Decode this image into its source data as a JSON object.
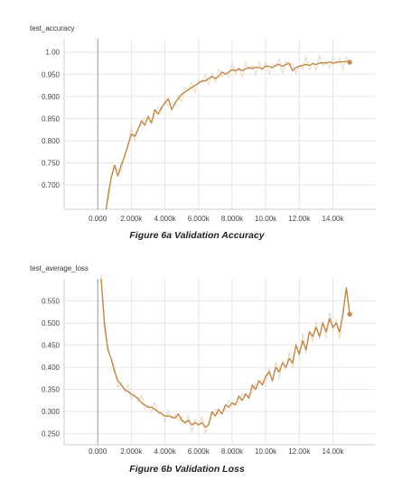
{
  "colors": {
    "line": "#c0894a",
    "raw": "#ecd9c3",
    "grid": "#e6e6e6",
    "axis": "#cccccc",
    "zero": "#999999"
  },
  "chart_data": [
    {
      "type": "line",
      "title": "test_accuracy",
      "caption": "Figure 6a Validation Accuracy",
      "xlim": [
        -2000,
        16500
      ],
      "ylim": [
        0.645,
        1.03
      ],
      "xticks": [
        0,
        2000,
        4000,
        6000,
        8000,
        10000,
        12000,
        14000
      ],
      "xtick_labels": [
        "0.000",
        "2.000k",
        "4.000k",
        "6.000k",
        "8.000k",
        "10.00k",
        "12.00k",
        "14.00k"
      ],
      "yticks": [
        0.7,
        0.75,
        0.8,
        0.85,
        0.9,
        0.95,
        1.0
      ],
      "ytick_labels": [
        "0.700",
        "0.750",
        "0.800",
        "0.850",
        "0.900",
        "0.950",
        "1.00"
      ],
      "grid": true,
      "series": [
        {
          "x": [
            500,
            650,
            800,
            1000,
            1200,
            1400,
            1600,
            1800,
            2000,
            2200,
            2400,
            2600,
            2800,
            3000,
            3200,
            3400,
            3600,
            3800,
            4000,
            4200,
            4400,
            4600,
            4800,
            5000,
            5200,
            5400,
            5600,
            5800,
            6000,
            6200,
            6400,
            6600,
            6800,
            7000,
            7200,
            7400,
            7600,
            7800,
            8000,
            8200,
            8400,
            8600,
            8800,
            9000,
            9200,
            9400,
            9600,
            9800,
            10000,
            10200,
            10400,
            10600,
            10800,
            11000,
            11200,
            11400,
            11600,
            11800,
            12000,
            12200,
            12400,
            12600,
            12800,
            13000,
            13200,
            13400,
            13600,
            13800,
            14000,
            14200,
            14400,
            14600,
            14800,
            15000
          ],
          "values": [
            0.645,
            0.685,
            0.715,
            0.745,
            0.72,
            0.745,
            0.765,
            0.79,
            0.815,
            0.81,
            0.825,
            0.845,
            0.835,
            0.855,
            0.84,
            0.87,
            0.86,
            0.875,
            0.885,
            0.895,
            0.87,
            0.885,
            0.895,
            0.905,
            0.91,
            0.915,
            0.92,
            0.925,
            0.93,
            0.935,
            0.935,
            0.94,
            0.945,
            0.94,
            0.945,
            0.955,
            0.95,
            0.955,
            0.96,
            0.958,
            0.962,
            0.958,
            0.962,
            0.965,
            0.963,
            0.966,
            0.965,
            0.962,
            0.968,
            0.968,
            0.965,
            0.97,
            0.972,
            0.968,
            0.972,
            0.975,
            0.958,
            0.965,
            0.968,
            0.97,
            0.972,
            0.97,
            0.974,
            0.972,
            0.975,
            0.976,
            0.975,
            0.978,
            0.975,
            0.977,
            0.978,
            0.978,
            0.979,
            0.977
          ]
        }
      ]
    },
    {
      "type": "line",
      "title": "test_average_loss",
      "caption": "Figure 6b Validation Loss",
      "xlim": [
        -2000,
        16500
      ],
      "ylim": [
        0.225,
        0.6
      ],
      "xticks": [
        0,
        2000,
        4000,
        6000,
        8000,
        10000,
        12000,
        14000
      ],
      "xtick_labels": [
        "0.000",
        "2.000k",
        "4.000k",
        "6.000k",
        "8.000k",
        "10.00k",
        "12.00k",
        "14.00k"
      ],
      "yticks": [
        0.25,
        0.3,
        0.35,
        0.4,
        0.45,
        0.5,
        0.55
      ],
      "ytick_labels": [
        "0.250",
        "0.300",
        "0.350",
        "0.400",
        "0.450",
        "0.500",
        "0.550"
      ],
      "grid": true,
      "series": [
        {
          "x": [
            200,
            400,
            600,
            800,
            1000,
            1200,
            1400,
            1600,
            1800,
            2000,
            2200,
            2400,
            2600,
            2800,
            3000,
            3200,
            3400,
            3600,
            3800,
            4000,
            4200,
            4400,
            4600,
            4800,
            5000,
            5200,
            5400,
            5600,
            5800,
            6000,
            6200,
            6400,
            6600,
            6800,
            7000,
            7200,
            7400,
            7600,
            7800,
            8000,
            8200,
            8400,
            8600,
            8800,
            9000,
            9200,
            9400,
            9600,
            9800,
            10000,
            10200,
            10400,
            10600,
            10800,
            11000,
            11200,
            11400,
            11600,
            11800,
            12000,
            12200,
            12400,
            12600,
            12800,
            13000,
            13200,
            13400,
            13600,
            13800,
            14000,
            14200,
            14400,
            14600,
            14800,
            15000
          ],
          "values": [
            0.6,
            0.5,
            0.44,
            0.42,
            0.39,
            0.37,
            0.36,
            0.35,
            0.345,
            0.34,
            0.335,
            0.33,
            0.32,
            0.315,
            0.31,
            0.31,
            0.305,
            0.3,
            0.295,
            0.29,
            0.29,
            0.288,
            0.285,
            0.295,
            0.28,
            0.275,
            0.28,
            0.27,
            0.275,
            0.27,
            0.275,
            0.265,
            0.27,
            0.3,
            0.29,
            0.305,
            0.295,
            0.315,
            0.31,
            0.32,
            0.315,
            0.335,
            0.325,
            0.34,
            0.33,
            0.36,
            0.35,
            0.37,
            0.36,
            0.38,
            0.39,
            0.37,
            0.4,
            0.39,
            0.41,
            0.4,
            0.42,
            0.41,
            0.45,
            0.43,
            0.46,
            0.44,
            0.48,
            0.47,
            0.49,
            0.47,
            0.5,
            0.48,
            0.51,
            0.49,
            0.5,
            0.48,
            0.52,
            0.58,
            0.52
          ]
        }
      ]
    }
  ]
}
